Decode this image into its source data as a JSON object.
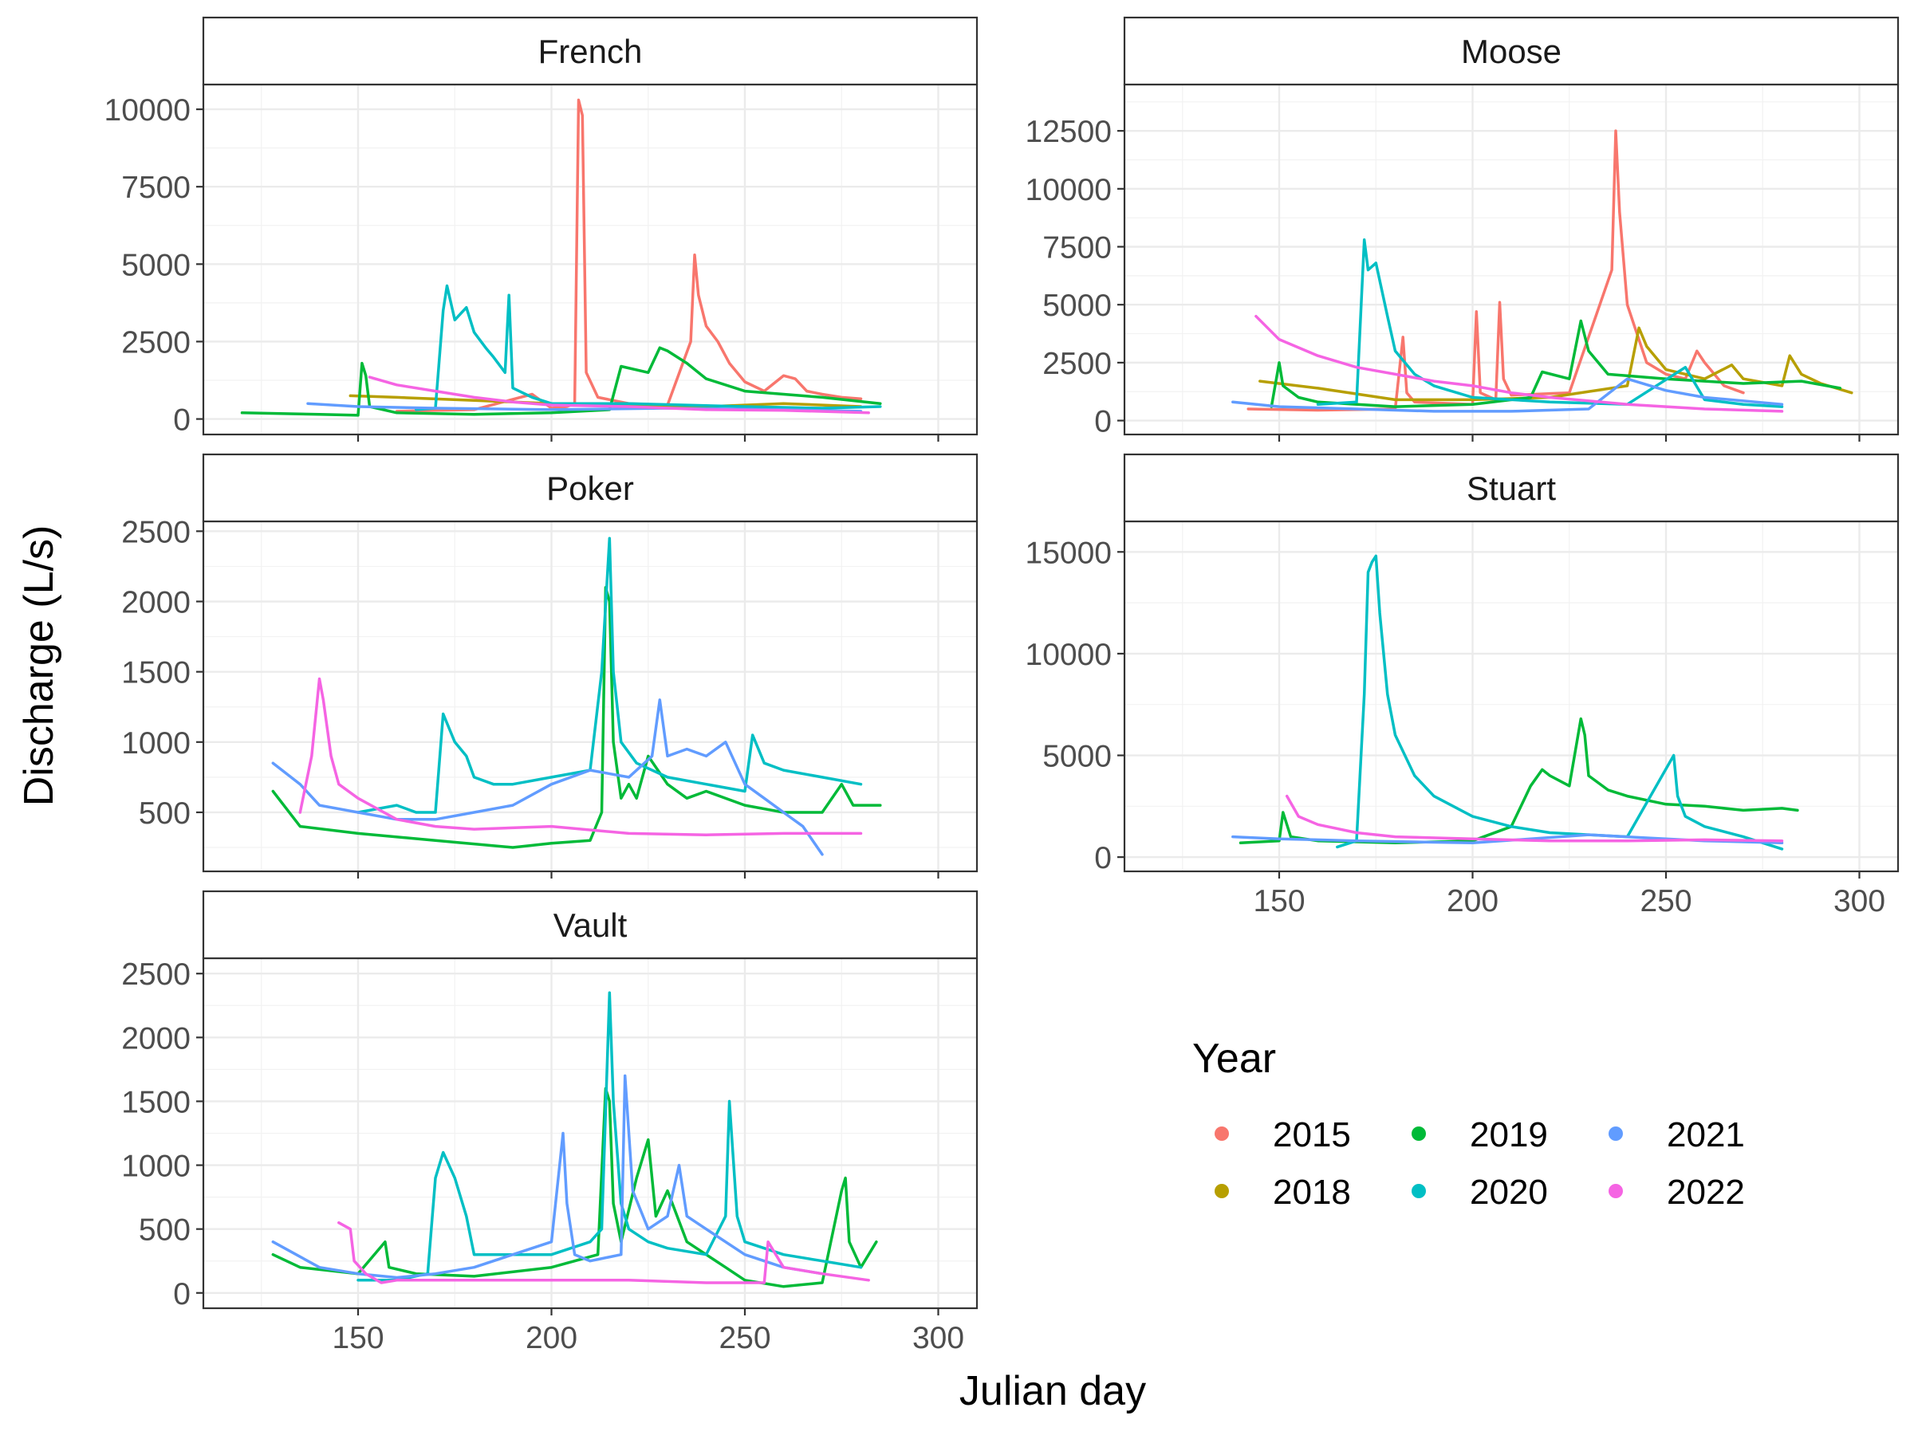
{
  "figure": {
    "xlabel": "Julian day",
    "ylabel": "Discharge (L/s)",
    "legend_title": "Year"
  },
  "colors": {
    "2015": "#F8766D",
    "2018": "#B79F00",
    "2019": "#00BA38",
    "2020": "#00BFC4",
    "2021": "#619CFF",
    "2022": "#F564E3"
  },
  "legend": {
    "title": "Year",
    "placement": "bottom-right",
    "items": [
      "2015",
      "2018",
      "2019",
      "2020",
      "2021",
      "2022"
    ]
  },
  "chart_data": [
    {
      "type": "line",
      "facet": "French",
      "xlabel": "Julian day",
      "ylabel": "Discharge (L/s)",
      "xlim": [
        110,
        310
      ],
      "ylim": [
        -500,
        10800
      ],
      "xticks": [
        150,
        200,
        250,
        300
      ],
      "yticks": [
        0,
        2500,
        5000,
        7500,
        10000
      ],
      "grid": true,
      "series": [
        {
          "name": "2015",
          "x": [
            160,
            180,
            195,
            200,
            204,
            206,
            207,
            208,
            209,
            212,
            220,
            230,
            236,
            237,
            238,
            240,
            243,
            246,
            250,
            255,
            260,
            263,
            266,
            270,
            275,
            280
          ],
          "y": [
            250,
            300,
            800,
            350,
            400,
            500,
            10300,
            9800,
            1500,
            700,
            500,
            450,
            2500,
            5300,
            4000,
            3000,
            2500,
            1800,
            1200,
            900,
            1400,
            1300,
            900,
            800,
            700,
            650
          ]
        },
        {
          "name": "2018",
          "x": [
            148,
            160,
            180,
            200,
            220,
            240,
            260,
            280
          ],
          "y": [
            750,
            700,
            600,
            500,
            450,
            400,
            500,
            400
          ]
        },
        {
          "name": "2019",
          "x": [
            120,
            140,
            150,
            151,
            152,
            153,
            160,
            180,
            200,
            215,
            218,
            225,
            228,
            230,
            235,
            240,
            250,
            260,
            270,
            285
          ],
          "y": [
            200,
            150,
            120,
            1800,
            1400,
            400,
            200,
            150,
            200,
            300,
            1700,
            1500,
            2300,
            2200,
            1800,
            1300,
            900,
            800,
            700,
            500
          ]
        },
        {
          "name": "2020",
          "x": [
            165,
            170,
            172,
            173,
            175,
            178,
            180,
            183,
            185,
            188,
            189,
            190,
            195,
            200,
            220,
            250,
            270,
            285
          ],
          "y": [
            300,
            350,
            3500,
            4300,
            3200,
            3600,
            2800,
            2300,
            2000,
            1500,
            4000,
            1000,
            700,
            500,
            500,
            400,
            350,
            400
          ]
        },
        {
          "name": "2021",
          "x": [
            137,
            150,
            170,
            200,
            230,
            260,
            280
          ],
          "y": [
            500,
            400,
            350,
            300,
            350,
            300,
            250
          ]
        },
        {
          "name": "2022",
          "x": [
            153,
            160,
            170,
            180,
            190,
            200,
            220,
            240,
            260,
            282
          ],
          "y": [
            1350,
            1100,
            900,
            700,
            550,
            450,
            400,
            300,
            280,
            200
          ]
        }
      ]
    },
    {
      "type": "line",
      "facet": "Moose",
      "xlabel": "Julian day",
      "ylabel": "Discharge (L/s)",
      "xlim": [
        110,
        310
      ],
      "ylim": [
        -600,
        14500
      ],
      "xticks": [
        150,
        200,
        250,
        300
      ],
      "yticks": [
        0,
        2500,
        5000,
        7500,
        10000,
        12500
      ],
      "grid": true,
      "series": [
        {
          "name": "2015",
          "x": [
            142,
            160,
            180,
            182,
            183,
            185,
            200,
            201,
            202,
            206,
            207,
            208,
            210,
            225,
            236,
            237,
            238,
            240,
            242,
            245,
            250,
            255,
            258,
            260,
            265,
            270
          ],
          "y": [
            500,
            450,
            500,
            3600,
            1200,
            800,
            700,
            4700,
            1200,
            900,
            5100,
            1800,
            1100,
            1200,
            6500,
            12500,
            9000,
            5000,
            4000,
            2500,
            2000,
            1800,
            3000,
            2500,
            1500,
            1200
          ]
        },
        {
          "name": "2018",
          "x": [
            145,
            160,
            180,
            200,
            220,
            240,
            243,
            245,
            250,
            260,
            267,
            270,
            280,
            282,
            285,
            290,
            298
          ],
          "y": [
            1700,
            1400,
            900,
            900,
            1000,
            1500,
            4000,
            3200,
            2200,
            1800,
            2400,
            1800,
            1500,
            2800,
            2000,
            1600,
            1200
          ]
        },
        {
          "name": "2019",
          "x": [
            148,
            150,
            151,
            155,
            160,
            180,
            200,
            215,
            218,
            225,
            228,
            230,
            235,
            250,
            270,
            285,
            295
          ],
          "y": [
            600,
            2500,
            1500,
            1000,
            800,
            600,
            700,
            1000,
            2100,
            1800,
            4300,
            3000,
            2000,
            1800,
            1600,
            1700,
            1400
          ]
        },
        {
          "name": "2020",
          "x": [
            160,
            170,
            172,
            173,
            175,
            178,
            180,
            185,
            190,
            200,
            220,
            240,
            255,
            260,
            270,
            280
          ],
          "y": [
            700,
            800,
            7800,
            6500,
            6800,
            4500,
            3000,
            2000,
            1500,
            1000,
            800,
            700,
            2300,
            900,
            700,
            600
          ]
        },
        {
          "name": "2021",
          "x": [
            138,
            150,
            170,
            190,
            210,
            230,
            240,
            250,
            260,
            280
          ],
          "y": [
            800,
            600,
            500,
            400,
            400,
            500,
            1800,
            1300,
            1000,
            700
          ]
        },
        {
          "name": "2022",
          "x": [
            144,
            150,
            160,
            170,
            180,
            190,
            200,
            210,
            220,
            240,
            260,
            280
          ],
          "y": [
            4500,
            3500,
            2800,
            2300,
            2000,
            1700,
            1500,
            1200,
            1000,
            700,
            500,
            400
          ]
        }
      ]
    },
    {
      "type": "line",
      "facet": "Poker",
      "xlabel": "Julian day",
      "ylabel": "Discharge (L/s)",
      "xlim": [
        110,
        310
      ],
      "ylim": [
        80,
        2570
      ],
      "xticks": [
        150,
        200,
        250,
        300
      ],
      "yticks": [
        500,
        1000,
        1500,
        2000,
        2500
      ],
      "grid": true,
      "series": [
        {
          "name": "2019",
          "x": [
            128,
            135,
            150,
            170,
            190,
            200,
            210,
            213,
            214,
            215,
            216,
            218,
            220,
            222,
            225,
            230,
            235,
            240,
            250,
            260,
            270,
            275,
            278,
            285
          ],
          "y": [
            650,
            400,
            350,
            300,
            250,
            280,
            300,
            500,
            2100,
            2000,
            1000,
            600,
            700,
            600,
            900,
            700,
            600,
            650,
            550,
            500,
            500,
            700,
            550,
            550
          ]
        },
        {
          "name": "2020",
          "x": [
            150,
            160,
            165,
            170,
            172,
            175,
            178,
            180,
            185,
            190,
            200,
            210,
            213,
            215,
            216,
            218,
            222,
            230,
            240,
            250,
            252,
            255,
            260,
            270,
            280
          ],
          "y": [
            500,
            550,
            500,
            500,
            1200,
            1000,
            900,
            750,
            700,
            700,
            750,
            800,
            1500,
            2450,
            1500,
            1000,
            850,
            750,
            700,
            650,
            1050,
            850,
            800,
            750,
            700
          ]
        },
        {
          "name": "2021",
          "x": [
            128,
            135,
            140,
            150,
            160,
            170,
            180,
            190,
            200,
            210,
            220,
            226,
            228,
            230,
            235,
            240,
            245,
            250,
            255,
            260,
            265,
            270
          ],
          "y": [
            850,
            700,
            550,
            500,
            450,
            450,
            500,
            550,
            700,
            800,
            750,
            900,
            1300,
            900,
            950,
            900,
            1000,
            700,
            600,
            500,
            400,
            200
          ]
        },
        {
          "name": "2022",
          "x": [
            135,
            138,
            140,
            141,
            143,
            145,
            150,
            160,
            170,
            180,
            200,
            220,
            240,
            260,
            280
          ],
          "y": [
            500,
            900,
            1450,
            1300,
            900,
            700,
            600,
            450,
            400,
            380,
            400,
            350,
            340,
            350,
            350
          ]
        }
      ]
    },
    {
      "type": "line",
      "facet": "Stuart",
      "xlabel": "Julian day",
      "ylabel": "Discharge (L/s)",
      "xlim": [
        110,
        310
      ],
      "ylim": [
        -700,
        16500
      ],
      "xticks": [
        150,
        200,
        250,
        300
      ],
      "yticks": [
        0,
        5000,
        10000,
        15000
      ],
      "grid": true,
      "series": [
        {
          "name": "2019",
          "x": [
            140,
            150,
            151,
            153,
            160,
            180,
            200,
            210,
            215,
            218,
            220,
            225,
            228,
            229,
            230,
            235,
            240,
            250,
            260,
            270,
            280,
            284
          ],
          "y": [
            700,
            800,
            2200,
            1000,
            800,
            700,
            800,
            1500,
            3500,
            4300,
            4000,
            3500,
            6800,
            6000,
            4000,
            3300,
            3000,
            2600,
            2500,
            2300,
            2400,
            2300
          ]
        },
        {
          "name": "2020",
          "x": [
            165,
            170,
            172,
            173,
            174,
            175,
            176,
            178,
            180,
            185,
            190,
            200,
            210,
            220,
            240,
            252,
            253,
            255,
            260,
            270,
            280
          ],
          "y": [
            500,
            800,
            8000,
            14000,
            14500,
            14800,
            12000,
            8000,
            6000,
            4000,
            3000,
            2000,
            1500,
            1200,
            1000,
            5000,
            3000,
            2000,
            1500,
            1000,
            400
          ]
        },
        {
          "name": "2021",
          "x": [
            138,
            150,
            170,
            200,
            230,
            250,
            260,
            280
          ],
          "y": [
            1000,
            900,
            800,
            700,
            1100,
            900,
            800,
            700
          ]
        },
        {
          "name": "2022",
          "x": [
            152,
            155,
            160,
            170,
            180,
            200,
            220,
            240,
            260,
            280
          ],
          "y": [
            3000,
            2000,
            1600,
            1200,
            1000,
            900,
            800,
            800,
            850,
            800
          ]
        }
      ]
    },
    {
      "type": "line",
      "facet": "Vault",
      "xlabel": "Julian day",
      "ylabel": "Discharge (L/s)",
      "xlim": [
        110,
        310
      ],
      "ylim": [
        -120,
        2620
      ],
      "xticks": [
        150,
        200,
        250,
        300
      ],
      "yticks": [
        0,
        500,
        1000,
        1500,
        2000,
        2500
      ],
      "grid": true,
      "series": [
        {
          "name": "2019",
          "x": [
            128,
            135,
            150,
            157,
            158,
            165,
            180,
            200,
            212,
            214,
            215,
            216,
            218,
            222,
            225,
            227,
            230,
            235,
            240,
            245,
            250,
            260,
            270,
            275,
            276,
            277,
            280,
            284
          ],
          "y": [
            300,
            200,
            150,
            400,
            200,
            150,
            130,
            200,
            300,
            1600,
            1500,
            700,
            400,
            900,
            1200,
            600,
            800,
            400,
            300,
            200,
            100,
            50,
            80,
            800,
            900,
            400,
            200,
            400
          ]
        },
        {
          "name": "2020",
          "x": [
            150,
            160,
            168,
            170,
            172,
            175,
            178,
            180,
            190,
            200,
            210,
            213,
            215,
            216,
            218,
            220,
            225,
            230,
            240,
            245,
            246,
            248,
            250,
            260,
            270,
            280
          ],
          "y": [
            100,
            100,
            150,
            900,
            1100,
            900,
            600,
            300,
            300,
            300,
            400,
            500,
            2350,
            1500,
            700,
            500,
            400,
            350,
            300,
            600,
            1500,
            600,
            400,
            300,
            250,
            200
          ]
        },
        {
          "name": "2021",
          "x": [
            128,
            140,
            150,
            160,
            170,
            180,
            190,
            200,
            203,
            204,
            206,
            210,
            218,
            219,
            221,
            225,
            230,
            233,
            235,
            240,
            250,
            260,
            270
          ],
          "y": [
            400,
            200,
            150,
            120,
            150,
            200,
            300,
            400,
            1250,
            700,
            300,
            250,
            300,
            1700,
            800,
            500,
            600,
            1000,
            600,
            500,
            300,
            200,
            150
          ]
        },
        {
          "name": "2022",
          "x": [
            145,
            148,
            149,
            152,
            156,
            160,
            180,
            200,
            220,
            240,
            255,
            256,
            258,
            260,
            270,
            282
          ],
          "y": [
            550,
            500,
            250,
            150,
            80,
            100,
            100,
            100,
            100,
            80,
            80,
            400,
            300,
            200,
            150,
            100
          ]
        }
      ]
    }
  ]
}
